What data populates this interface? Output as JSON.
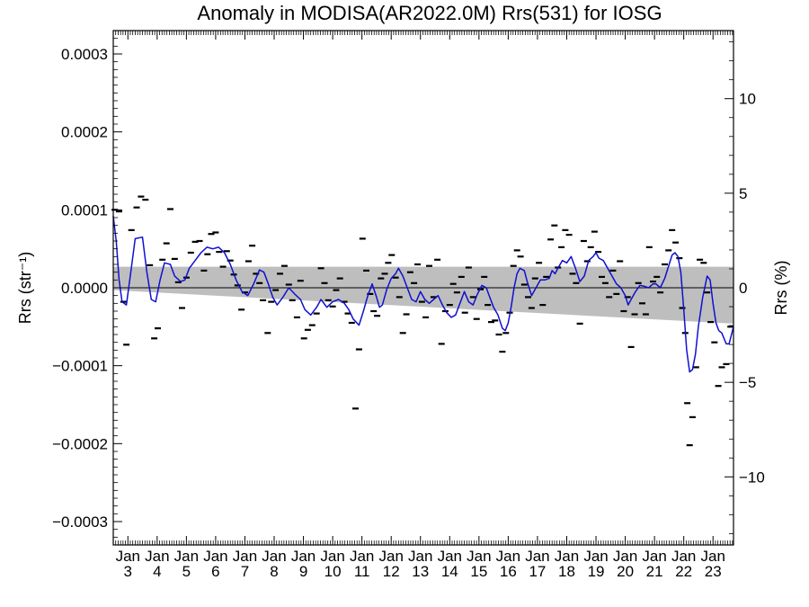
{
  "chart_data": {
    "type": "line",
    "title": "Anomaly in MODISA(AR2022.0M) Rrs(531) for IOSG",
    "ylabel_left": "Rrs (str⁻¹)",
    "ylabel_right": "Rrs (%)",
    "xlim": [
      2002.5,
      2023.7
    ],
    "ylim_left": [
      -0.00033,
      0.00033
    ],
    "ylim_right": [
      -13.6,
      13.6
    ],
    "yticks_left": [
      {
        "v": 0.0003,
        "label": "0.0003"
      },
      {
        "v": 0.0002,
        "label": "0.0002"
      },
      {
        "v": 0.0001,
        "label": "0.0001"
      },
      {
        "v": 0.0,
        "label": "0.0000"
      },
      {
        "v": -0.0001,
        "label": "−0.0001"
      },
      {
        "v": -0.0002,
        "label": "−0.0002"
      },
      {
        "v": -0.0003,
        "label": "−0.0003"
      }
    ],
    "yticks_right": [
      {
        "v": 10,
        "label": "10"
      },
      {
        "v": 5,
        "label": "5"
      },
      {
        "v": 0,
        "label": "0"
      },
      {
        "v": -5,
        "label": "−5"
      },
      {
        "v": -10,
        "label": "−10"
      }
    ],
    "xticks": [
      {
        "v": 2003,
        "top": "Jan",
        "bottom": "3"
      },
      {
        "v": 2004,
        "top": "Jan",
        "bottom": "4"
      },
      {
        "v": 2005,
        "top": "Jan",
        "bottom": "5"
      },
      {
        "v": 2006,
        "top": "Jan",
        "bottom": "6"
      },
      {
        "v": 2007,
        "top": "Jan",
        "bottom": "7"
      },
      {
        "v": 2008,
        "top": "Jan",
        "bottom": "8"
      },
      {
        "v": 2009,
        "top": "Jan",
        "bottom": "9"
      },
      {
        "v": 2010,
        "top": "Jan",
        "bottom": "10"
      },
      {
        "v": 2011,
        "top": "Jan",
        "bottom": "11"
      },
      {
        "v": 2012,
        "top": "Jan",
        "bottom": "12"
      },
      {
        "v": 2013,
        "top": "Jan",
        "bottom": "13"
      },
      {
        "v": 2014,
        "top": "Jan",
        "bottom": "14"
      },
      {
        "v": 2015,
        "top": "Jan",
        "bottom": "15"
      },
      {
        "v": 2016,
        "top": "Jan",
        "bottom": "16"
      },
      {
        "v": 2017,
        "top": "Jan",
        "bottom": "17"
      },
      {
        "v": 2018,
        "top": "Jan",
        "bottom": "18"
      },
      {
        "v": 2019,
        "top": "Jan",
        "bottom": "19"
      },
      {
        "v": 2020,
        "top": "Jan",
        "bottom": "20"
      },
      {
        "v": 2021,
        "top": "Jan",
        "bottom": "21"
      },
      {
        "v": 2022,
        "top": "Jan",
        "bottom": "22"
      },
      {
        "v": 2023,
        "top": "Jan",
        "bottom": "23"
      }
    ],
    "zero_line": 0.0,
    "band": {
      "color": "#bebebe",
      "upper": [
        [
          2002.5,
          2.7e-05
        ],
        [
          2023.7,
          2.7e-05
        ]
      ],
      "lower": [
        [
          2002.5,
          -3e-06
        ],
        [
          2023.7,
          -4.6e-05
        ]
      ]
    },
    "smoothed_series": {
      "color": "#1010d0",
      "points": [
        [
          2002.5,
          9.2e-05
        ],
        [
          2002.6,
          6e-05
        ],
        [
          2002.7,
          1e-05
        ],
        [
          2002.8,
          -1.8e-05
        ],
        [
          2002.95,
          -2.2e-05
        ],
        [
          2003.1,
          2e-05
        ],
        [
          2003.25,
          6.3e-05
        ],
        [
          2003.5,
          6.5e-05
        ],
        [
          2003.65,
          2e-05
        ],
        [
          2003.8,
          -1.5e-05
        ],
        [
          2003.95,
          -1.8e-05
        ],
        [
          2004.1,
          1e-05
        ],
        [
          2004.25,
          3.2e-05
        ],
        [
          2004.45,
          3e-05
        ],
        [
          2004.6,
          1.5e-05
        ],
        [
          2004.8,
          8e-06
        ],
        [
          2004.95,
          1e-05
        ],
        [
          2005.1,
          2.5e-05
        ],
        [
          2005.3,
          3.5e-05
        ],
        [
          2005.5,
          4.5e-05
        ],
        [
          2005.7,
          5.2e-05
        ],
        [
          2005.9,
          5e-05
        ],
        [
          2006.1,
          5.2e-05
        ],
        [
          2006.3,
          4.5e-05
        ],
        [
          2006.5,
          3e-05
        ],
        [
          2006.7,
          1e-05
        ],
        [
          2006.9,
          -5e-06
        ],
        [
          2007.1,
          -1e-05
        ],
        [
          2007.3,
          5e-06
        ],
        [
          2007.5,
          2.3e-05
        ],
        [
          2007.65,
          2e-05
        ],
        [
          2007.8,
          5e-06
        ],
        [
          2007.95,
          -1.2e-05
        ],
        [
          2008.1,
          -2.2e-05
        ],
        [
          2008.3,
          -1.2e-05
        ],
        [
          2008.5,
          0.0
        ],
        [
          2008.7,
          -8e-06
        ],
        [
          2008.9,
          -1.5e-05
        ],
        [
          2009.05,
          -2.8e-05
        ],
        [
          2009.25,
          -3.5e-05
        ],
        [
          2009.45,
          -2.5e-05
        ],
        [
          2009.6,
          -1.5e-05
        ],
        [
          2009.8,
          -2.5e-05
        ],
        [
          2010.0,
          -1.8e-05
        ],
        [
          2010.2,
          -1.5e-05
        ],
        [
          2010.4,
          -2e-05
        ],
        [
          2010.55,
          -2.8e-05
        ],
        [
          2010.7,
          -4e-05
        ],
        [
          2010.9,
          -4.8e-05
        ],
        [
          2011.05,
          -3e-05
        ],
        [
          2011.2,
          -1e-05
        ],
        [
          2011.35,
          5e-06
        ],
        [
          2011.5,
          -1.2e-05
        ],
        [
          2011.6,
          -2.5e-05
        ],
        [
          2011.7,
          -2.2e-05
        ],
        [
          2011.85,
          -2e-06
        ],
        [
          2012.0,
          1.2e-05
        ],
        [
          2012.15,
          1.8e-05
        ],
        [
          2012.25,
          2.5e-05
        ],
        [
          2012.4,
          1.5e-05
        ],
        [
          2012.55,
          0.0
        ],
        [
          2012.7,
          -1.5e-05
        ],
        [
          2012.85,
          -1.8e-05
        ],
        [
          2013.0,
          -5e-06
        ],
        [
          2013.15,
          -1.5e-05
        ],
        [
          2013.3,
          -2e-05
        ],
        [
          2013.45,
          -1.5e-05
        ],
        [
          2013.6,
          -1e-05
        ],
        [
          2013.75,
          -2.2e-05
        ],
        [
          2013.9,
          -3.2e-05
        ],
        [
          2014.05,
          -3.8e-05
        ],
        [
          2014.2,
          -3.5e-05
        ],
        [
          2014.35,
          -2e-05
        ],
        [
          2014.5,
          -5e-06
        ],
        [
          2014.65,
          -1.8e-05
        ],
        [
          2014.8,
          -2.2e-05
        ],
        [
          2014.95,
          -8e-06
        ],
        [
          2015.1,
          3e-06
        ],
        [
          2015.25,
          0.0
        ],
        [
          2015.35,
          -1e-05
        ],
        [
          2015.5,
          -2.5e-05
        ],
        [
          2015.65,
          -3.5e-05
        ],
        [
          2015.8,
          -5.2e-05
        ],
        [
          2015.9,
          -5.5e-05
        ],
        [
          2016.0,
          -4.5e-05
        ],
        [
          2016.1,
          -2.5e-05
        ],
        [
          2016.2,
          0.0
        ],
        [
          2016.3,
          1.8e-05
        ],
        [
          2016.4,
          2.5e-05
        ],
        [
          2016.55,
          2.2e-05
        ],
        [
          2016.65,
          8e-06
        ],
        [
          2016.8,
          -1e-05
        ],
        [
          2016.95,
          0.0
        ],
        [
          2017.1,
          1e-05
        ],
        [
          2017.25,
          1e-05
        ],
        [
          2017.4,
          1.2e-05
        ],
        [
          2017.5,
          2.2e-05
        ],
        [
          2017.6,
          1.8e-05
        ],
        [
          2017.7,
          2.5e-05
        ],
        [
          2017.85,
          3.5e-05
        ],
        [
          2018.0,
          3.2e-05
        ],
        [
          2018.15,
          4e-05
        ],
        [
          2018.3,
          2.5e-05
        ],
        [
          2018.45,
          8e-06
        ],
        [
          2018.6,
          1.5e-05
        ],
        [
          2018.75,
          3.5e-05
        ],
        [
          2018.9,
          4e-05
        ],
        [
          2019.0,
          4.5e-05
        ],
        [
          2019.1,
          3.8e-05
        ],
        [
          2019.25,
          3.5e-05
        ],
        [
          2019.4,
          2.5e-05
        ],
        [
          2019.55,
          1.5e-05
        ],
        [
          2019.7,
          5e-06
        ],
        [
          2019.85,
          0.0
        ],
        [
          2020.0,
          -1e-05
        ],
        [
          2020.1,
          -2.2e-05
        ],
        [
          2020.2,
          -1.5e-05
        ],
        [
          2020.35,
          -5e-06
        ],
        [
          2020.5,
          3e-06
        ],
        [
          2020.65,
          2e-06
        ],
        [
          2020.8,
          0.0
        ],
        [
          2020.95,
          5e-06
        ],
        [
          2021.05,
          5e-06
        ],
        [
          2021.2,
          0.0
        ],
        [
          2021.35,
          1.2e-05
        ],
        [
          2021.5,
          3e-05
        ],
        [
          2021.6,
          4.2e-05
        ],
        [
          2021.7,
          4.5e-05
        ],
        [
          2021.8,
          4e-05
        ],
        [
          2021.9,
          2e-05
        ],
        [
          2022.0,
          -2.8e-05
        ],
        [
          2022.1,
          -8e-05
        ],
        [
          2022.2,
          -0.000108
        ],
        [
          2022.3,
          -0.000105
        ],
        [
          2022.4,
          -8.5e-05
        ],
        [
          2022.5,
          -5e-05
        ],
        [
          2022.65,
          -1.2e-05
        ],
        [
          2022.8,
          1.5e-05
        ],
        [
          2022.9,
          1e-05
        ],
        [
          2023.0,
          -2e-05
        ],
        [
          2023.1,
          -4.5e-05
        ],
        [
          2023.2,
          -5.5e-05
        ],
        [
          2023.3,
          -5.8e-05
        ],
        [
          2023.45,
          -7.2e-05
        ],
        [
          2023.55,
          -7.2e-05
        ],
        [
          2023.7,
          -5e-05
        ]
      ]
    },
    "observations": [
      [
        2002.55,
        0.0001
      ],
      [
        2002.7,
        9.8e-05
      ],
      [
        2002.85,
        -1.8e-05
      ],
      [
        2002.95,
        -7.3e-05
      ],
      [
        2003.12,
        7.4e-05
      ],
      [
        2003.3,
        0.000103
      ],
      [
        2003.45,
        0.000117
      ],
      [
        2003.6,
        0.000113
      ],
      [
        2003.75,
        2.9e-05
      ],
      [
        2003.9,
        -6.5e-05
      ],
      [
        2004.02,
        -5.2e-05
      ],
      [
        2004.18,
        3.6e-05
      ],
      [
        2004.32,
        5.7e-05
      ],
      [
        2004.45,
        0.000101
      ],
      [
        2004.6,
        3.7e-05
      ],
      [
        2004.72,
        7e-06
      ],
      [
        2004.85,
        -2.6e-05
      ],
      [
        2005.0,
        1.3e-05
      ],
      [
        2005.15,
        4.5e-05
      ],
      [
        2005.3,
        5.9e-05
      ],
      [
        2005.45,
        6e-05
      ],
      [
        2005.6,
        2.2e-05
      ],
      [
        2005.72,
        4.3e-05
      ],
      [
        2005.85,
        6.9e-05
      ],
      [
        2006.0,
        7.1e-05
      ],
      [
        2006.12,
        4.6e-05
      ],
      [
        2006.25,
        2.7e-05
      ],
      [
        2006.38,
        4.7e-05
      ],
      [
        2006.5,
        3.5e-05
      ],
      [
        2006.62,
        1.7e-05
      ],
      [
        2006.75,
        3e-06
      ],
      [
        2006.88,
        -2.8e-05
      ],
      [
        2007.0,
        -6e-06
      ],
      [
        2007.12,
        3.4e-05
      ],
      [
        2007.25,
        5.4e-05
      ],
      [
        2007.38,
        1.8e-05
      ],
      [
        2007.5,
        6e-06
      ],
      [
        2007.62,
        -1.6e-05
      ],
      [
        2007.78,
        -5.8e-05
      ],
      [
        2007.9,
        -1.8e-05
      ],
      [
        2008.05,
        -3e-06
      ],
      [
        2008.2,
        1.8e-05
      ],
      [
        2008.35,
        2.8e-05
      ],
      [
        2008.5,
        4e-06
      ],
      [
        2008.62,
        -1.6e-05
      ],
      [
        2008.78,
        -3.8e-05
      ],
      [
        2008.9,
        9e-06
      ],
      [
        2009.02,
        -6.5e-05
      ],
      [
        2009.15,
        -5.4e-05
      ],
      [
        2009.3,
        -4.8e-05
      ],
      [
        2009.45,
        -3.3e-05
      ],
      [
        2009.6,
        2.5e-05
      ],
      [
        2009.72,
        6e-06
      ],
      [
        2009.85,
        -1.6e-05
      ],
      [
        2010.0,
        -2.4e-05
      ],
      [
        2010.12,
        -3e-06
      ],
      [
        2010.25,
        1.2e-05
      ],
      [
        2010.4,
        -1.8e-05
      ],
      [
        2010.52,
        -3.3e-05
      ],
      [
        2010.65,
        -4.5e-05
      ],
      [
        2010.78,
        -0.000155
      ],
      [
        2010.9,
        -7.9e-05
      ],
      [
        2011.02,
        6.3e-05
      ],
      [
        2011.15,
        2.2e-05
      ],
      [
        2011.28,
        -8e-06
      ],
      [
        2011.4,
        -3e-05
      ],
      [
        2011.52,
        -3.6e-05
      ],
      [
        2011.65,
        1.2e-05
      ],
      [
        2011.78,
        1.8e-05
      ],
      [
        2011.9,
        3.2e-05
      ],
      [
        2012.02,
        4.2e-05
      ],
      [
        2012.15,
        1.3e-05
      ],
      [
        2012.28,
        -1.2e-05
      ],
      [
        2012.4,
        -5.8e-05
      ],
      [
        2012.52,
        -3.4e-05
      ],
      [
        2012.65,
        2e-05
      ],
      [
        2012.78,
        6e-06
      ],
      [
        2012.9,
        3e-05
      ],
      [
        2013.05,
        -1.8e-05
      ],
      [
        2013.18,
        -3.8e-05
      ],
      [
        2013.3,
        2.8e-05
      ],
      [
        2013.45,
        -1.2e-05
      ],
      [
        2013.58,
        3.6e-05
      ],
      [
        2013.72,
        -7.2e-05
      ],
      [
        2013.85,
        -3e-05
      ],
      [
        2014.0,
        -2.2e-05
      ],
      [
        2014.12,
        5e-06
      ],
      [
        2014.25,
        -6e-06
      ],
      [
        2014.4,
        1.4e-05
      ],
      [
        2014.52,
        -3.2e-05
      ],
      [
        2014.65,
        2.6e-05
      ],
      [
        2014.8,
        -1.2e-05
      ],
      [
        2014.92,
        -4e-05
      ],
      [
        2015.05,
        -2e-06
      ],
      [
        2015.18,
        1.4e-05
      ],
      [
        2015.3,
        -2.2e-05
      ],
      [
        2015.42,
        -4.4e-05
      ],
      [
        2015.55,
        -4.2e-05
      ],
      [
        2015.68,
        -6e-05
      ],
      [
        2015.8,
        -8.2e-05
      ],
      [
        2015.92,
        -5.8e-05
      ],
      [
        2016.05,
        -3.2e-05
      ],
      [
        2016.18,
        2.8e-05
      ],
      [
        2016.3,
        4.8e-05
      ],
      [
        2016.42,
        4e-05
      ],
      [
        2016.55,
        4e-06
      ],
      [
        2016.68,
        -1.2e-05
      ],
      [
        2016.8,
        -2.6e-05
      ],
      [
        2016.92,
        1.2e-05
      ],
      [
        2017.05,
        3.2e-05
      ],
      [
        2017.18,
        -2.2e-05
      ],
      [
        2017.3,
        1.4e-05
      ],
      [
        2017.45,
        6.2e-05
      ],
      [
        2017.58,
        8e-05
      ],
      [
        2017.7,
        2.6e-05
      ],
      [
        2017.82,
        5.2e-05
      ],
      [
        2017.95,
        7.4e-05
      ],
      [
        2018.08,
        6.8e-05
      ],
      [
        2018.2,
        1.8e-05
      ],
      [
        2018.32,
        6e-06
      ],
      [
        2018.45,
        -4.6e-05
      ],
      [
        2018.58,
        6e-05
      ],
      [
        2018.7,
        3.4e-05
      ],
      [
        2018.82,
        5.2e-05
      ],
      [
        2018.95,
        7.2e-05
      ],
      [
        2019.08,
        4.6e-05
      ],
      [
        2019.2,
        1.4e-05
      ],
      [
        2019.32,
        6e-06
      ],
      [
        2019.45,
        -1.2e-05
      ],
      [
        2019.58,
        2.2e-05
      ],
      [
        2019.7,
        -8e-06
      ],
      [
        2019.82,
        3.4e-05
      ],
      [
        2019.95,
        -3e-05
      ],
      [
        2020.08,
        -1.2e-05
      ],
      [
        2020.2,
        -7.6e-05
      ],
      [
        2020.32,
        -3.4e-05
      ],
      [
        2020.45,
        6e-06
      ],
      [
        2020.58,
        -2e-05
      ],
      [
        2020.7,
        -3.4e-05
      ],
      [
        2020.82,
        5.2e-05
      ],
      [
        2020.95,
        8e-06
      ],
      [
        2021.08,
        1.4e-05
      ],
      [
        2021.2,
        -6e-06
      ],
      [
        2021.35,
        3e-05
      ],
      [
        2021.48,
        4.8e-05
      ],
      [
        2021.6,
        7.4e-05
      ],
      [
        2021.72,
        5.8e-05
      ],
      [
        2021.85,
        3.8e-05
      ],
      [
        2021.95,
        -2.6e-05
      ],
      [
        2022.05,
        -5.8e-05
      ],
      [
        2022.12,
        -0.000148
      ],
      [
        2022.2,
        -0.000202
      ],
      [
        2022.3,
        -0.000166
      ],
      [
        2022.42,
        -0.000102
      ],
      [
        2022.55,
        3.6e-05
      ],
      [
        2022.68,
        3.2e-05
      ],
      [
        2022.8,
        -6e-06
      ],
      [
        2022.92,
        -4.4e-05
      ],
      [
        2023.05,
        -7e-05
      ],
      [
        2023.18,
        -0.000126
      ],
      [
        2023.3,
        -0.000102
      ],
      [
        2023.45,
        -9.8e-05
      ],
      [
        2023.6,
        -5e-05
      ]
    ]
  }
}
